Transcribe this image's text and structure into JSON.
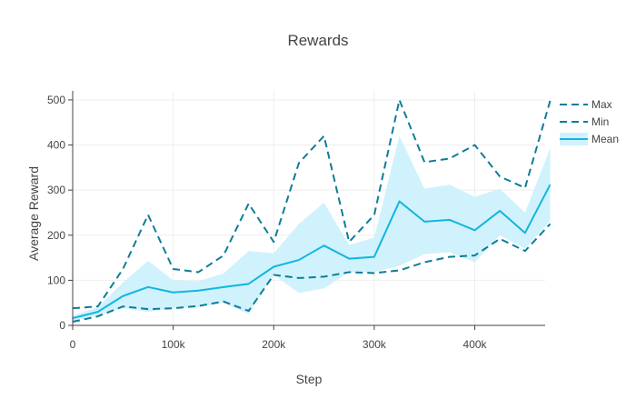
{
  "chart_data": {
    "type": "line",
    "title": "Rewards",
    "xlabel": "Step",
    "ylabel": "Average Reward",
    "xlim": [
      0,
      470000
    ],
    "ylim": [
      0,
      520
    ],
    "x_ticks": [
      0,
      100000,
      200000,
      300000,
      400000
    ],
    "x_tick_labels": [
      "0",
      "100k",
      "200k",
      "300k",
      "400k"
    ],
    "y_ticks": [
      0,
      100,
      200,
      300,
      400,
      500
    ],
    "y_tick_labels": [
      "0",
      "100",
      "200",
      "300",
      "400",
      "500"
    ],
    "x": [
      0,
      25000,
      50000,
      75000,
      100000,
      125000,
      150000,
      175000,
      200000,
      225000,
      250000,
      275000,
      300000,
      325000,
      350000,
      375000,
      400000,
      425000,
      450000,
      475000
    ],
    "series": [
      {
        "name": "Max",
        "style": "dash",
        "color": "#0e7c9a",
        "values": [
          38,
          42,
          125,
          245,
          125,
          118,
          155,
          270,
          185,
          360,
          420,
          185,
          245,
          500,
          362,
          370,
          400,
          330,
          305,
          498
        ]
      },
      {
        "name": "Min",
        "style": "dash",
        "color": "#0e7c9a",
        "values": [
          8,
          20,
          42,
          36,
          38,
          43,
          53,
          32,
          112,
          105,
          108,
          118,
          116,
          122,
          140,
          152,
          155,
          192,
          165,
          225
        ]
      },
      {
        "name": "Mean",
        "style": "solid",
        "color": "#12b5e2",
        "values": [
          16,
          30,
          65,
          85,
          73,
          77,
          85,
          92,
          130,
          145,
          177,
          148,
          152,
          275,
          230,
          234,
          211,
          254,
          205,
          312
        ]
      }
    ],
    "band": {
      "fill": "#c8f0fb",
      "upper": [
        22,
        40,
        95,
        143,
        100,
        98,
        115,
        165,
        160,
        225,
        272,
        178,
        195,
        420,
        303,
        312,
        285,
        303,
        250,
        393
      ],
      "lower": [
        10,
        22,
        38,
        30,
        38,
        40,
        50,
        25,
        112,
        72,
        82,
        118,
        118,
        132,
        158,
        162,
        140,
        200,
        170,
        232
      ]
    },
    "legend_position": "top-right"
  }
}
